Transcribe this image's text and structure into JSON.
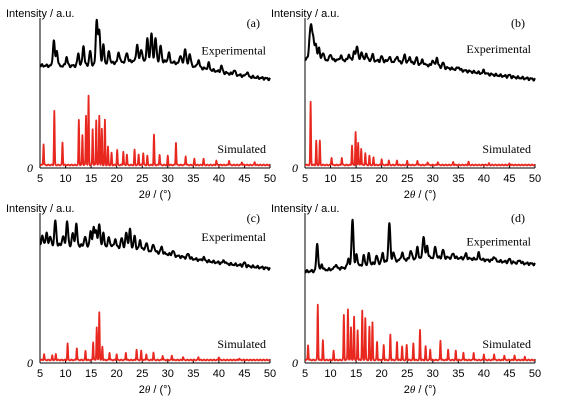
{
  "figure": {
    "xaxis_label_html": [
      "2",
      "θ",
      " / (°)"
    ],
    "colors": {
      "experimental": "#000000",
      "simulated": "#e8271f"
    }
  },
  "chart_data": [
    {
      "panel": "(a)",
      "type": "line",
      "ylabel": "Intensity / a.u.",
      "xlabel": "2θ / (°)",
      "xlim": [
        5,
        50
      ],
      "xticks": [
        5,
        10,
        15,
        20,
        25,
        30,
        35,
        40,
        45,
        50
      ],
      "origin_label": "0",
      "series": [
        {
          "name": "Experimental",
          "baseline": 0.68,
          "baseline_end": 0.59,
          "hump": {
            "center": 28,
            "width": 9,
            "height": 0.08
          },
          "peaks": [
            [
              7.7,
              0.17
            ],
            [
              8.3,
              0.1
            ],
            [
              10.2,
              0.06
            ],
            [
              12.5,
              0.08
            ],
            [
              13.5,
              0.13
            ],
            [
              14.8,
              0.09
            ],
            [
              16.1,
              0.3
            ],
            [
              16.6,
              0.22
            ],
            [
              17.4,
              0.12
            ],
            [
              18.5,
              0.08
            ],
            [
              20.4,
              0.07
            ],
            [
              22.0,
              0.06
            ],
            [
              24.0,
              0.11
            ],
            [
              24.8,
              0.08
            ],
            [
              26.0,
              0.14
            ],
            [
              26.8,
              0.18
            ],
            [
              27.6,
              0.15
            ],
            [
              28.6,
              0.1
            ],
            [
              30.2,
              0.06
            ],
            [
              32.5,
              0.06
            ],
            [
              33.4,
              0.11
            ],
            [
              34.3,
              0.08
            ],
            [
              36.0,
              0.05
            ],
            [
              38.0,
              0.04
            ],
            [
              40.5,
              0.04
            ],
            [
              43.0,
              0.03
            ],
            [
              45.5,
              0.03
            ]
          ]
        },
        {
          "name": "Simulated",
          "baseline": 0.02,
          "baseline_end": 0.02,
          "peaks": [
            [
              5.7,
              0.14
            ],
            [
              7.8,
              0.36
            ],
            [
              9.4,
              0.15
            ],
            [
              12.6,
              0.3
            ],
            [
              13.3,
              0.2
            ],
            [
              14.0,
              0.33
            ],
            [
              14.5,
              0.46
            ],
            [
              15.3,
              0.24
            ],
            [
              16.0,
              0.3
            ],
            [
              16.6,
              0.33
            ],
            [
              17.1,
              0.24
            ],
            [
              17.7,
              0.3
            ],
            [
              18.3,
              0.12
            ],
            [
              19.0,
              0.08
            ],
            [
              20.1,
              0.1
            ],
            [
              21.3,
              0.09
            ],
            [
              22.0,
              0.07
            ],
            [
              23.5,
              0.1
            ],
            [
              24.3,
              0.07
            ],
            [
              25.2,
              0.08
            ],
            [
              26.0,
              0.06
            ],
            [
              27.3,
              0.2
            ],
            [
              28.4,
              0.07
            ],
            [
              30.0,
              0.06
            ],
            [
              31.6,
              0.15
            ],
            [
              33.5,
              0.06
            ],
            [
              35.2,
              0.04
            ],
            [
              37.0,
              0.04
            ],
            [
              39.5,
              0.03
            ],
            [
              42.0,
              0.03
            ],
            [
              44.5,
              0.02
            ],
            [
              47.0,
              0.02
            ]
          ]
        }
      ]
    },
    {
      "panel": "(b)",
      "type": "line",
      "ylabel": "Intensity / a.u.",
      "xlabel": "2θ / (°)",
      "xlim": [
        5,
        50
      ],
      "xticks": [
        5,
        10,
        15,
        20,
        25,
        30,
        35,
        40,
        45,
        50
      ],
      "origin_label": "0",
      "series": [
        {
          "name": "Experimental",
          "baseline": 0.72,
          "baseline_end": 0.59,
          "hump": {
            "center": 24,
            "width": 10,
            "height": 0.04
          },
          "peaks": [
            [
              5.9,
              0.11
            ],
            [
              6.2,
              0.19
            ],
            [
              6.6,
              0.15
            ],
            [
              7.1,
              0.1
            ],
            [
              7.7,
              0.08
            ],
            [
              8.5,
              0.05
            ],
            [
              10.0,
              0.04
            ],
            [
              12.0,
              0.03
            ],
            [
              13.6,
              0.04
            ],
            [
              14.6,
              0.06
            ],
            [
              15.2,
              0.1
            ],
            [
              16.1,
              0.06
            ],
            [
              17.0,
              0.05
            ],
            [
              18.2,
              0.04
            ],
            [
              20.0,
              0.03
            ],
            [
              21.5,
              0.03
            ],
            [
              23.0,
              0.04
            ],
            [
              24.5,
              0.05
            ],
            [
              25.5,
              0.04
            ],
            [
              26.8,
              0.04
            ],
            [
              28.0,
              0.03
            ],
            [
              30.0,
              0.04
            ],
            [
              30.8,
              0.06
            ],
            [
              32.0,
              0.03
            ],
            [
              35.0,
              0.02
            ],
            [
              40.0,
              0.02
            ],
            [
              45.0,
              0.01
            ]
          ]
        },
        {
          "name": "Simulated",
          "baseline": 0.02,
          "baseline_end": 0.02,
          "peaks": [
            [
              6.1,
              0.42
            ],
            [
              7.2,
              0.16
            ],
            [
              7.9,
              0.16
            ],
            [
              10.2,
              0.05
            ],
            [
              12.2,
              0.05
            ],
            [
              14.2,
              0.13
            ],
            [
              14.9,
              0.22
            ],
            [
              15.4,
              0.15
            ],
            [
              16.0,
              0.11
            ],
            [
              16.8,
              0.08
            ],
            [
              17.6,
              0.06
            ],
            [
              18.4,
              0.05
            ],
            [
              20.0,
              0.04
            ],
            [
              21.4,
              0.03
            ],
            [
              23.0,
              0.03
            ],
            [
              25.0,
              0.03
            ],
            [
              27.0,
              0.03
            ],
            [
              29.0,
              0.02
            ],
            [
              31.0,
              0.02
            ],
            [
              34.0,
              0.02
            ],
            [
              37.0,
              0.02
            ],
            [
              41.0,
              0.01
            ],
            [
              45.0,
              0.01
            ]
          ]
        }
      ]
    },
    {
      "panel": "(c)",
      "type": "line",
      "ylabel": "Intensity / a.u.",
      "xlabel": "2θ / (°)",
      "xlim": [
        5,
        50
      ],
      "xticks": [
        5,
        10,
        15,
        20,
        25,
        30,
        35,
        40,
        45,
        50
      ],
      "origin_label": "0",
      "series": [
        {
          "name": "Experimental",
          "baseline": 0.79,
          "baseline_end": 0.63,
          "hump": {
            "center": 22,
            "width": 8,
            "height": 0.04
          },
          "peaks": [
            [
              5.5,
              0.05
            ],
            [
              6.3,
              0.07
            ],
            [
              7.0,
              0.05
            ],
            [
              8.0,
              0.16
            ],
            [
              9.5,
              0.06
            ],
            [
              10.3,
              0.16
            ],
            [
              11.4,
              0.08
            ],
            [
              12.1,
              0.14
            ],
            [
              13.8,
              0.06
            ],
            [
              14.9,
              0.09
            ],
            [
              15.5,
              0.12
            ],
            [
              16.0,
              0.1
            ],
            [
              16.6,
              0.14
            ],
            [
              17.4,
              0.08
            ],
            [
              18.5,
              0.06
            ],
            [
              19.7,
              0.05
            ],
            [
              21.0,
              0.06
            ],
            [
              21.9,
              0.1
            ],
            [
              22.6,
              0.12
            ],
            [
              23.5,
              0.08
            ],
            [
              24.6,
              0.06
            ],
            [
              25.8,
              0.05
            ],
            [
              27.2,
              0.05
            ],
            [
              28.8,
              0.04
            ],
            [
              31.0,
              0.03
            ],
            [
              34.0,
              0.03
            ],
            [
              37.0,
              0.02
            ],
            [
              41.0,
              0.02
            ],
            [
              45.0,
              0.02
            ]
          ]
        },
        {
          "name": "Simulated",
          "baseline": 0.02,
          "baseline_end": 0.02,
          "peaks": [
            [
              5.8,
              0.04
            ],
            [
              7.4,
              0.03
            ],
            [
              8.1,
              0.04
            ],
            [
              10.4,
              0.11
            ],
            [
              12.2,
              0.08
            ],
            [
              13.9,
              0.06
            ],
            [
              15.4,
              0.12
            ],
            [
              16.1,
              0.22
            ],
            [
              16.6,
              0.32
            ],
            [
              17.2,
              0.09
            ],
            [
              18.6,
              0.05
            ],
            [
              20.0,
              0.04
            ],
            [
              21.8,
              0.05
            ],
            [
              23.9,
              0.07
            ],
            [
              24.8,
              0.06
            ],
            [
              25.8,
              0.04
            ],
            [
              27.2,
              0.05
            ],
            [
              29.0,
              0.03
            ],
            [
              30.8,
              0.03
            ],
            [
              33.0,
              0.02
            ],
            [
              36.0,
              0.02
            ],
            [
              40.0,
              0.02
            ],
            [
              44.0,
              0.01
            ]
          ]
        }
      ]
    },
    {
      "panel": "(d)",
      "type": "line",
      "ylabel": "Intensity / a.u.",
      "xlabel": "2θ / (°)",
      "xlim": [
        5,
        50
      ],
      "xticks": [
        5,
        10,
        15,
        20,
        25,
        30,
        35,
        40,
        45,
        50
      ],
      "origin_label": "0",
      "series": [
        {
          "name": "Experimental",
          "baseline": 0.6,
          "baseline_end": 0.64,
          "hump": {
            "center": 30,
            "width": 12,
            "height": 0.08
          },
          "peaks": [
            [
              7.4,
              0.18
            ],
            [
              8.3,
              0.04
            ],
            [
              11.0,
              0.03
            ],
            [
              13.5,
              0.06
            ],
            [
              14.3,
              0.32
            ],
            [
              15.1,
              0.08
            ],
            [
              16.5,
              0.06
            ],
            [
              17.5,
              0.07
            ],
            [
              19.0,
              0.05
            ],
            [
              20.2,
              0.06
            ],
            [
              21.5,
              0.26
            ],
            [
              22.3,
              0.06
            ],
            [
              24.0,
              0.05
            ],
            [
              25.7,
              0.06
            ],
            [
              27.0,
              0.07
            ],
            [
              28.2,
              0.15
            ],
            [
              28.9,
              0.08
            ],
            [
              30.5,
              0.07
            ],
            [
              32.0,
              0.05
            ],
            [
              34.0,
              0.03
            ],
            [
              36.5,
              0.03
            ],
            [
              39.0,
              0.04
            ],
            [
              42.0,
              0.03
            ],
            [
              45.0,
              0.02
            ],
            [
              47.0,
              0.02
            ]
          ]
        },
        {
          "name": "Simulated",
          "baseline": 0.02,
          "baseline_end": 0.02,
          "peaks": [
            [
              5.6,
              0.1
            ],
            [
              7.5,
              0.37
            ],
            [
              8.5,
              0.13
            ],
            [
              10.6,
              0.06
            ],
            [
              12.6,
              0.3
            ],
            [
              13.4,
              0.34
            ],
            [
              14.0,
              0.22
            ],
            [
              14.6,
              0.29
            ],
            [
              15.3,
              0.2
            ],
            [
              16.2,
              0.33
            ],
            [
              16.8,
              0.28
            ],
            [
              17.6,
              0.22
            ],
            [
              18.2,
              0.25
            ],
            [
              19.1,
              0.12
            ],
            [
              20.4,
              0.1
            ],
            [
              21.7,
              0.17
            ],
            [
              23.0,
              0.12
            ],
            [
              24.0,
              0.09
            ],
            [
              24.9,
              0.1
            ],
            [
              26.2,
              0.11
            ],
            [
              27.5,
              0.2
            ],
            [
              28.6,
              0.09
            ],
            [
              29.5,
              0.07
            ],
            [
              31.5,
              0.13
            ],
            [
              33.0,
              0.07
            ],
            [
              34.5,
              0.06
            ],
            [
              36.0,
              0.05
            ],
            [
              38.0,
              0.05
            ],
            [
              40.0,
              0.04
            ],
            [
              42.0,
              0.04
            ],
            [
              44.0,
              0.03
            ],
            [
              46.0,
              0.03
            ],
            [
              48.0,
              0.02
            ]
          ]
        }
      ]
    }
  ]
}
